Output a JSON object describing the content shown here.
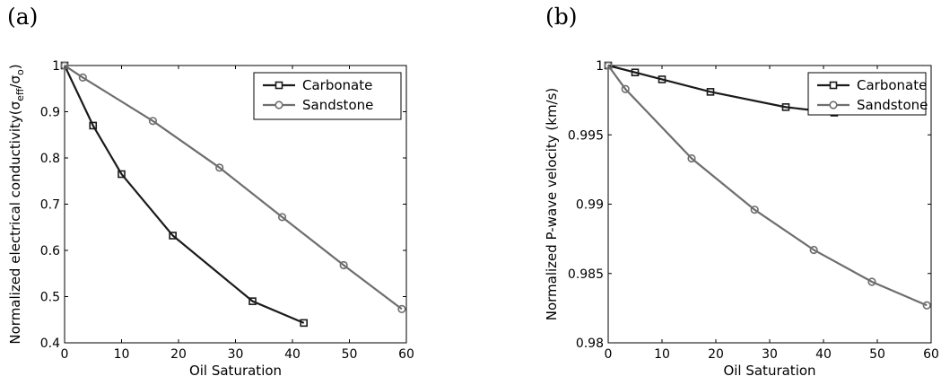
{
  "panels": [
    {
      "label": "(a)"
    },
    {
      "label": "(b)"
    }
  ],
  "chart_data": [
    {
      "type": "line",
      "xlabel": "Oil Saturation",
      "ylabel_main": "Normalized electrical conductivity(σ",
      "ylabel_sub1": "eff",
      "ylabel_mid": "/σ",
      "ylabel_sub2": "o",
      "ylabel_end": ")",
      "xlim": [
        0,
        60
      ],
      "ylim": [
        0.4,
        1.0
      ],
      "xticks": [
        0,
        10,
        20,
        30,
        40,
        50,
        60
      ],
      "yticks": [
        0.4,
        0.5,
        0.6,
        0.7,
        0.8,
        0.9,
        1
      ],
      "legend_position": "top-right",
      "series": [
        {
          "name": "Carbonate",
          "marker": "square",
          "color": "#1a1a1a",
          "x": [
            0,
            5,
            10,
            19,
            33,
            42
          ],
          "y": [
            1.0,
            0.87,
            0.765,
            0.632,
            0.49,
            0.443
          ]
        },
        {
          "name": "Sandstone",
          "marker": "circle",
          "color": "#6e6e6e",
          "x": [
            0,
            3.2,
            15.5,
            27.2,
            38.2,
            49,
            59.2
          ],
          "y": [
            1.0,
            0.974,
            0.88,
            0.779,
            0.672,
            0.568,
            0.473
          ]
        }
      ]
    },
    {
      "type": "line",
      "xlabel": "Oil Saturation",
      "ylabel": "Normalized P-wave velocity (km/s)",
      "xlim": [
        0,
        60
      ],
      "ylim": [
        0.98,
        1.0
      ],
      "xticks": [
        0,
        10,
        20,
        30,
        40,
        50,
        60
      ],
      "yticks": [
        0.98,
        0.985,
        0.99,
        0.995,
        1
      ],
      "legend_position": "top-right",
      "series": [
        {
          "name": "Carbonate",
          "marker": "square",
          "color": "#1a1a1a",
          "x": [
            0,
            5,
            10,
            19,
            33,
            42
          ],
          "y": [
            1.0,
            0.9995,
            0.999,
            0.9981,
            0.997,
            0.9966
          ]
        },
        {
          "name": "Sandstone",
          "marker": "circle",
          "color": "#6e6e6e",
          "x": [
            0,
            3.2,
            15.5,
            27.2,
            38.2,
            49,
            59.2
          ],
          "y": [
            1.0,
            0.9983,
            0.9933,
            0.9896,
            0.9867,
            0.9844,
            0.9827
          ]
        }
      ]
    }
  ]
}
